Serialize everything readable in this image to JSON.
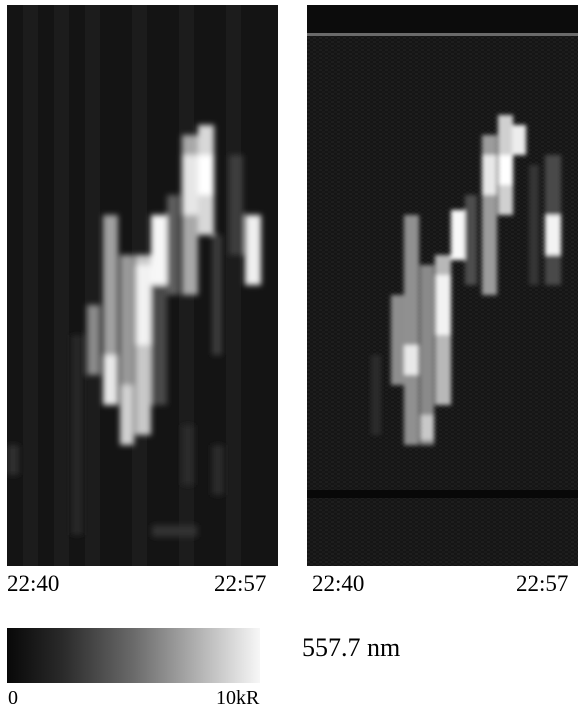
{
  "panels": {
    "left": {
      "time_start": "22:40",
      "time_end": "22:57"
    },
    "right": {
      "time_start": "22:40",
      "time_end": "22:57"
    }
  },
  "colorbar": {
    "min_label": "0",
    "max_label": "10kR"
  },
  "wavelength_label": "557.7 nm",
  "colors": {
    "background": "#ffffff",
    "image_dark": "#111111",
    "image_bright": "#f5f5f5"
  }
}
